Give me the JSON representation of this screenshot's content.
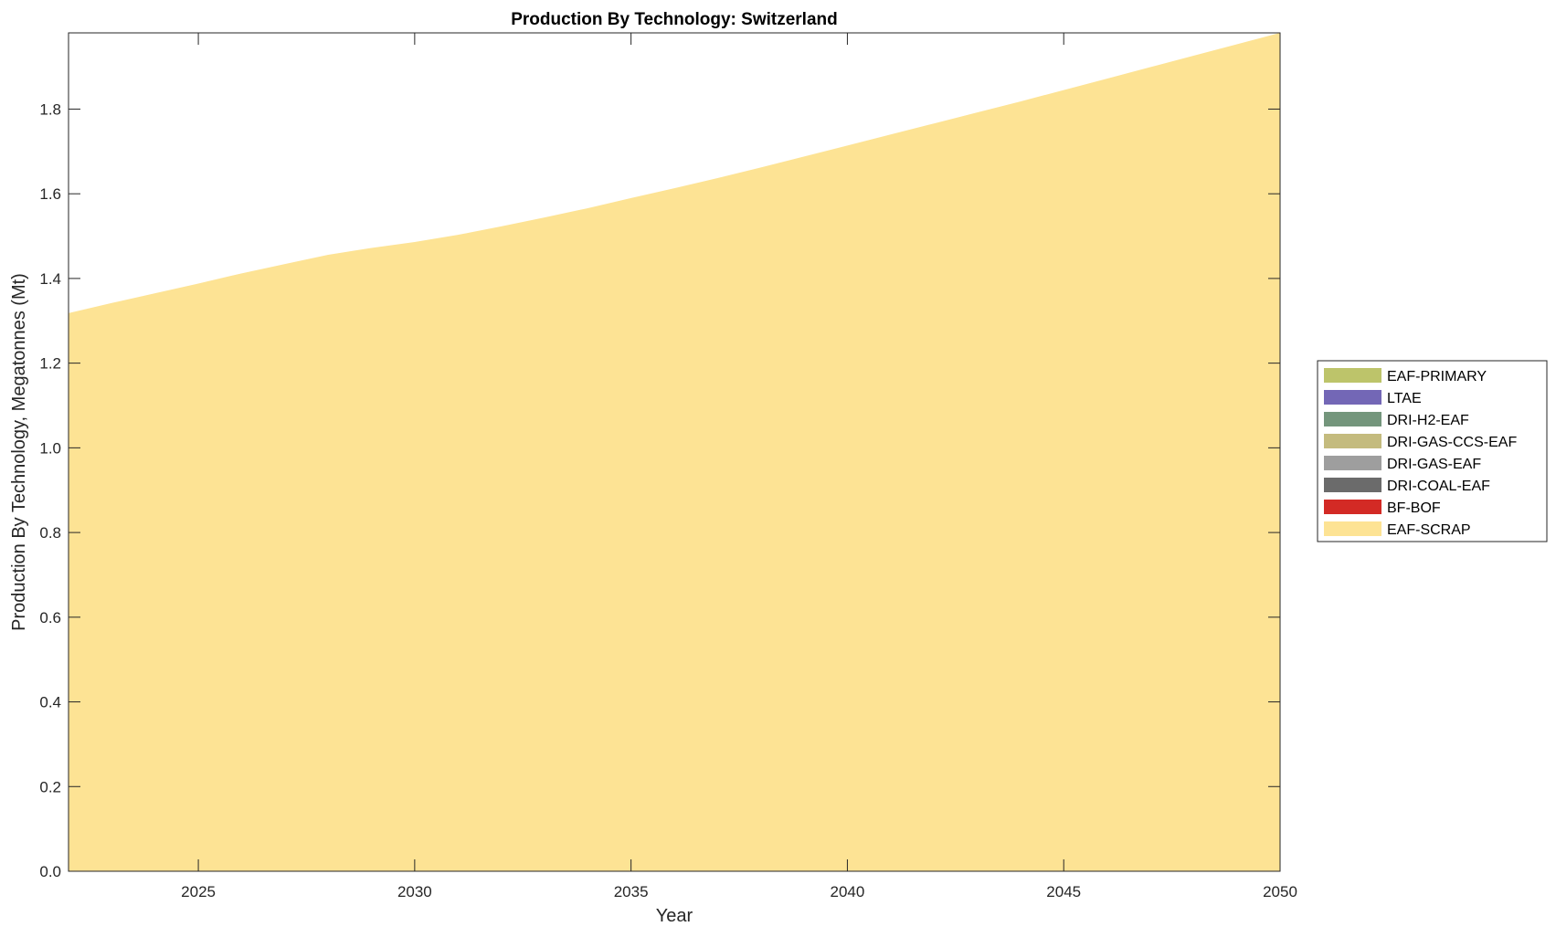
{
  "chart_data": {
    "type": "area",
    "stacked": true,
    "title": "Production By Technology: Switzerland",
    "xlabel": "Year",
    "ylabel": "Production By Technology, Megatonnes (Mt)",
    "xlim": [
      2022,
      2050
    ],
    "ylim": [
      0,
      1.98
    ],
    "xticks": [
      2025,
      2030,
      2035,
      2040,
      2045,
      2050
    ],
    "yticks": [
      0.0,
      0.2,
      0.4,
      0.6,
      0.8,
      1.0,
      1.2,
      1.4,
      1.6,
      1.8
    ],
    "grid": false,
    "legend_position": "right",
    "x": [
      2022,
      2023,
      2024,
      2025,
      2026,
      2027,
      2028,
      2029,
      2030,
      2031,
      2032,
      2033,
      2034,
      2035,
      2036,
      2037,
      2038,
      2039,
      2040,
      2041,
      2042,
      2043,
      2044,
      2045,
      2046,
      2047,
      2048,
      2049,
      2050
    ],
    "series": [
      {
        "name": "EAF-SCRAP",
        "color": "#FDE394",
        "values": [
          1.318,
          1.342,
          1.365,
          1.388,
          1.412,
          1.434,
          1.456,
          1.472,
          1.486,
          1.503,
          1.523,
          1.544,
          1.566,
          1.59,
          1.613,
          1.637,
          1.662,
          1.688,
          1.714,
          1.74,
          1.766,
          1.792,
          1.818,
          1.845,
          1.872,
          1.899,
          1.926,
          1.953,
          1.98
        ]
      },
      {
        "name": "BF-BOF",
        "color": "#D32A25",
        "values": "zero"
      },
      {
        "name": "DRI-COAL-EAF",
        "color": "#6B6B6B",
        "values": "zero"
      },
      {
        "name": "DRI-GAS-EAF",
        "color": "#9E9E9E",
        "values": "zero"
      },
      {
        "name": "DRI-GAS-CCS-EAF",
        "color": "#C4BB7E",
        "values": "zero"
      },
      {
        "name": "DRI-H2-EAF",
        "color": "#74967C",
        "values": "zero"
      },
      {
        "name": "LTAE",
        "color": "#7367B6",
        "values": "zero"
      },
      {
        "name": "EAF-PRIMARY",
        "color": "#BDC46A",
        "values": "zero"
      }
    ],
    "legend_order": [
      "EAF-PRIMARY",
      "LTAE",
      "DRI-H2-EAF",
      "DRI-GAS-CCS-EAF",
      "DRI-GAS-EAF",
      "DRI-COAL-EAF",
      "BF-BOF",
      "EAF-SCRAP"
    ]
  }
}
